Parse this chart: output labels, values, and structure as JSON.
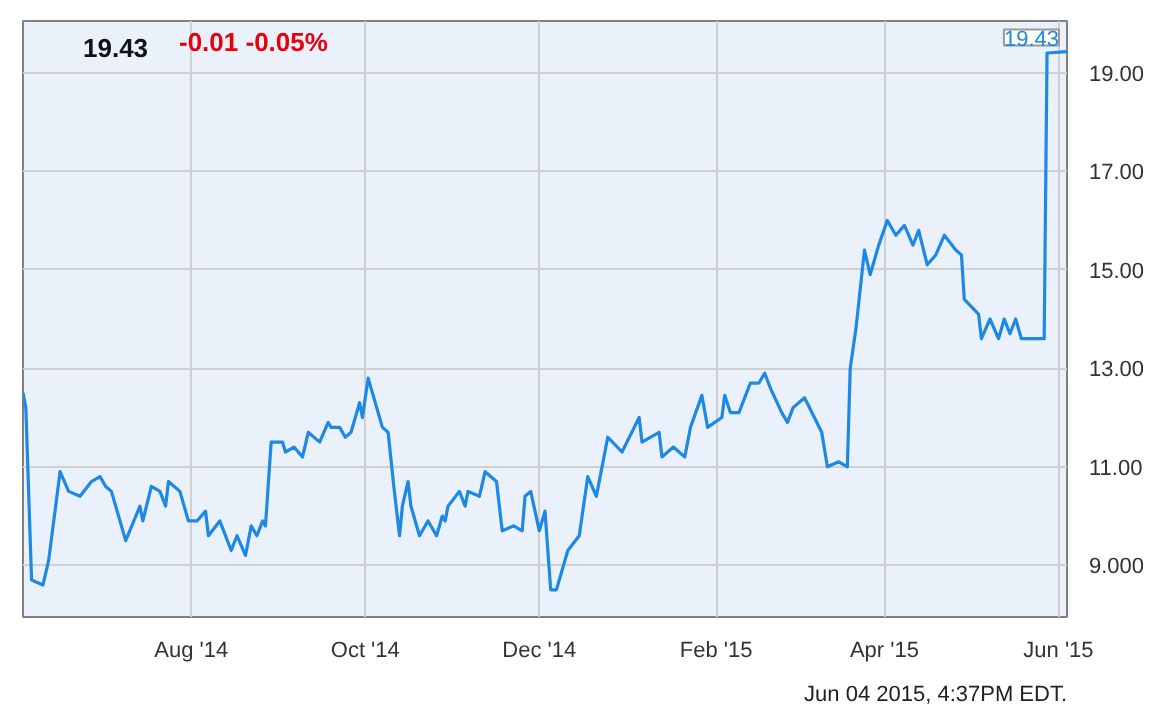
{
  "chart_data": {
    "type": "line",
    "title": "19.43",
    "subtitle": "-0.01 -0.05%",
    "x": [
      "2014-06-03",
      "2014-06-04",
      "2014-06-06",
      "2014-06-10",
      "2014-06-12",
      "2014-06-16",
      "2014-06-19",
      "2014-06-23",
      "2014-06-27",
      "2014-06-30",
      "2014-07-02",
      "2014-07-04",
      "2014-07-09",
      "2014-07-14",
      "2014-07-15",
      "2014-07-18",
      "2014-07-21",
      "2014-07-23",
      "2014-07-24",
      "2014-07-28",
      "2014-07-30",
      "2014-07-31",
      "2014-08-03",
      "2014-08-06",
      "2014-08-07",
      "2014-08-11",
      "2014-08-15",
      "2014-08-17",
      "2014-08-20",
      "2014-08-22",
      "2014-08-24",
      "2014-08-26",
      "2014-08-27",
      "2014-08-29",
      "2014-09-02",
      "2014-09-03",
      "2014-09-06",
      "2014-09-09",
      "2014-09-11",
      "2014-09-15",
      "2014-09-18",
      "2014-09-19",
      "2014-09-22",
      "2014-09-24",
      "2014-09-26",
      "2014-09-29",
      "2014-09-30",
      "2014-10-02",
      "2014-10-07",
      "2014-10-09",
      "2014-10-11",
      "2014-10-13",
      "2014-10-14",
      "2014-10-16",
      "2014-10-17",
      "2014-10-20",
      "2014-10-23",
      "2014-10-26",
      "2014-10-28",
      "2014-10-29",
      "2014-10-30",
      "2014-11-03",
      "2014-11-05",
      "2014-11-06",
      "2014-11-10",
      "2014-11-12",
      "2014-11-16",
      "2014-11-18",
      "2014-11-22",
      "2014-11-25",
      "2014-11-26",
      "2014-11-28",
      "2014-12-01",
      "2014-12-03",
      "2014-12-05",
      "2014-12-07",
      "2014-12-11",
      "2014-12-15",
      "2014-12-18",
      "2014-12-21",
      "2014-12-25",
      "2014-12-30",
      "2015-01-05",
      "2015-01-06",
      "2015-01-12",
      "2015-01-13",
      "2015-01-17",
      "2015-01-21",
      "2015-01-23",
      "2015-01-27",
      "2015-01-29",
      "2015-02-03",
      "2015-02-04",
      "2015-02-06",
      "2015-02-09",
      "2015-02-11",
      "2015-02-13",
      "2015-02-16",
      "2015-02-18",
      "2015-02-20",
      "2015-02-24",
      "2015-02-26",
      "2015-02-28",
      "2015-03-04",
      "2015-03-10",
      "2015-03-12",
      "2015-03-16",
      "2015-03-19",
      "2015-03-20",
      "2015-03-22",
      "2015-03-25",
      "2015-03-27",
      "2015-03-30",
      "2015-04-02",
      "2015-04-05",
      "2015-04-08",
      "2015-04-11",
      "2015-04-13",
      "2015-04-16",
      "2015-04-19",
      "2015-04-22",
      "2015-04-26",
      "2015-04-28",
      "2015-04-29",
      "2015-05-04",
      "2015-05-05",
      "2015-05-08",
      "2015-05-11",
      "2015-05-13",
      "2015-05-15",
      "2015-05-17",
      "2015-05-19",
      "2015-05-24",
      "2015-05-27",
      "2015-05-28",
      "2015-06-04"
    ],
    "series": [
      {
        "color": "#1e88e5",
        "values": [
          12.5,
          12.2,
          8.7,
          8.6,
          9.1,
          10.9,
          10.5,
          10.4,
          10.7,
          10.8,
          10.6,
          10.5,
          9.5,
          10.2,
          9.9,
          10.6,
          10.5,
          10.2,
          10.7,
          10.5,
          10.1,
          9.9,
          9.9,
          10.1,
          9.6,
          9.9,
          9.3,
          9.6,
          9.2,
          9.8,
          9.6,
          9.9,
          9.8,
          11.5,
          11.5,
          11.3,
          11.4,
          11.2,
          11.7,
          11.5,
          11.9,
          11.8,
          11.8,
          11.6,
          11.7,
          12.3,
          12.0,
          12.8,
          11.8,
          11.7,
          10.6,
          9.6,
          10.2,
          10.7,
          10.2,
          9.6,
          9.9,
          9.6,
          10.0,
          9.9,
          10.2,
          10.5,
          10.2,
          10.5,
          10.4,
          10.9,
          10.7,
          9.7,
          9.8,
          9.7,
          10.4,
          10.5,
          9.7,
          10.1,
          8.5,
          8.5,
          9.3,
          9.6,
          10.8,
          10.4,
          11.6,
          11.3,
          12.0,
          11.5,
          11.7,
          11.2,
          11.4,
          11.2,
          11.8,
          12.45,
          11.8,
          12.0,
          12.45,
          12.1,
          12.1,
          12.4,
          12.7,
          12.7,
          12.9,
          12.6,
          12.1,
          11.9,
          12.2,
          12.4,
          11.7,
          11.0,
          11.1,
          11.0,
          13.0,
          13.8,
          15.4,
          14.9,
          15.5,
          16.0,
          15.7,
          15.9,
          15.5,
          15.8,
          15.1,
          15.3,
          15.7,
          15.4,
          15.3,
          14.4,
          14.1,
          13.6,
          14.0,
          13.6,
          14.0,
          13.7,
          14.0,
          13.6,
          13.6,
          13.6,
          19.4,
          19.43
        ]
      }
    ],
    "xlim": [
      "2014-06-03",
      "2015-06-04"
    ],
    "xticks": [
      {
        "value": "2014-08-01",
        "label": "Aug '14"
      },
      {
        "value": "2014-10-01",
        "label": "Oct '14"
      },
      {
        "value": "2014-12-01",
        "label": "Dec '14"
      },
      {
        "value": "2015-02-01",
        "label": "Feb '15"
      },
      {
        "value": "2015-04-01",
        "label": "Apr '15"
      },
      {
        "value": "2015-06-01",
        "label": "Jun '15"
      }
    ],
    "ylim": [
      7.95,
      20.05
    ],
    "yticks": [
      {
        "value": 9,
        "label": "9.000"
      },
      {
        "value": 11,
        "label": "11.00"
      },
      {
        "value": 13,
        "label": "13.00"
      },
      {
        "value": 15,
        "label": "15.00"
      },
      {
        "value": 17,
        "label": "17.00"
      },
      {
        "value": 19,
        "label": "19.00"
      }
    ],
    "grid": true,
    "line_style": "solid",
    "marker": "none",
    "annotations": [
      {
        "text": "19.43",
        "x": "2015-06-04",
        "y": 19.43
      },
      "Jun 04 2015, 4:37PM EDT."
    ]
  }
}
